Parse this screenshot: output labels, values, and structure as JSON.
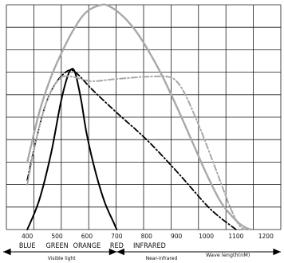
{
  "chart_data": {
    "type": "line",
    "xlabel": "Wave length(nM)",
    "x_ticks": [
      400,
      500,
      600,
      700,
      800,
      900,
      1000,
      1100,
      1200
    ],
    "xlim": [
      330,
      1250
    ],
    "ylim": [
      0,
      1
    ],
    "grid": true,
    "bands": [
      {
        "label": "BLUE",
        "x": 400
      },
      {
        "label": "GREEN",
        "x": 500
      },
      {
        "label": "ORANGE",
        "x": 600
      },
      {
        "label": "RED",
        "x": 700
      },
      {
        "label": "INFRARED",
        "x": 810
      }
    ],
    "regions": [
      {
        "label": "Visible light",
        "from": 330,
        "to": 700
      },
      {
        "label": "Near-infrared",
        "from": 700,
        "to": 1000
      }
    ],
    "series": [
      {
        "style": "solid-black",
        "color": "#000000",
        "x": [
          400,
          440,
          480,
          510,
          530,
          545,
          560,
          580,
          600,
          630,
          660,
          690,
          700
        ],
        "y": [
          0.0,
          0.13,
          0.34,
          0.55,
          0.66,
          0.71,
          0.7,
          0.58,
          0.42,
          0.25,
          0.12,
          0.03,
          0.0
        ]
      },
      {
        "style": "dash-dot-black",
        "color": "#000000",
        "x": [
          400,
          430,
          460,
          490,
          520,
          545,
          570,
          620,
          700,
          800,
          900,
          1000,
          1050,
          1080,
          1100
        ],
        "y": [
          0.22,
          0.4,
          0.55,
          0.64,
          0.69,
          0.71,
          0.69,
          0.62,
          0.52,
          0.4,
          0.26,
          0.11,
          0.05,
          0.02,
          0.0
        ]
      },
      {
        "style": "solid-gray",
        "color": "#a8a8a8",
        "x": [
          400,
          440,
          480,
          520,
          560,
          600,
          650,
          680,
          720,
          760,
          800,
          850,
          900,
          950,
          1000,
          1050,
          1100,
          1130,
          1150
        ],
        "y": [
          0.3,
          0.52,
          0.68,
          0.8,
          0.9,
          0.97,
          1.0,
          0.99,
          0.95,
          0.89,
          0.81,
          0.69,
          0.55,
          0.4,
          0.25,
          0.12,
          0.04,
          0.01,
          0.0
        ]
      },
      {
        "style": "dash-dot-gray",
        "color": "#a8a8a8",
        "x": [
          400,
          430,
          460,
          490,
          520,
          550,
          580,
          620,
          700,
          800,
          870,
          900,
          930,
          970,
          1000,
          1040,
          1080,
          1110,
          1130
        ],
        "y": [
          0.2,
          0.4,
          0.55,
          0.64,
          0.68,
          0.68,
          0.67,
          0.66,
          0.67,
          0.68,
          0.68,
          0.66,
          0.6,
          0.48,
          0.38,
          0.24,
          0.1,
          0.02,
          0.0
        ]
      }
    ]
  }
}
